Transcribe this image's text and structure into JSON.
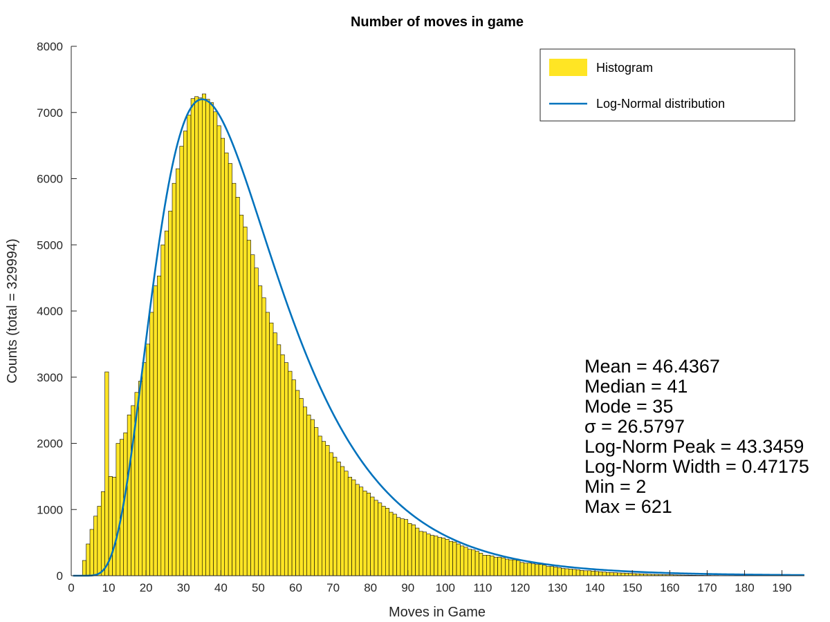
{
  "colors": {
    "bar_fill": "#FFE524",
    "bar_edge": "#000000",
    "line": "#0072BD",
    "axis": "#262626"
  },
  "legend": {
    "position": "top-right",
    "items": [
      {
        "label": "Histogram",
        "kind": "bar"
      },
      {
        "label": "Log-Normal distribution",
        "kind": "line"
      }
    ]
  },
  "stats": [
    "Mean = 46.4367",
    "Median = 41",
    "Mode = 35",
    "σ = 26.5797",
    "Log-Norm Peak = 43.3459",
    "Log-Norm Width = 0.47175",
    "Min = 2",
    "Max = 621"
  ],
  "chart_data": {
    "type": "bar",
    "title": "Number of moves in game",
    "xlabel": "Moves in Game",
    "ylabel": "Counts (total = 329994)",
    "xlim": [
      0,
      196
    ],
    "ylim": [
      0,
      8000
    ],
    "xticks": [
      0,
      10,
      20,
      30,
      40,
      50,
      60,
      70,
      80,
      90,
      100,
      110,
      120,
      130,
      140,
      150,
      160,
      170,
      180,
      190
    ],
    "yticks": [
      0,
      1000,
      2000,
      3000,
      4000,
      5000,
      6000,
      7000,
      8000
    ],
    "grid": false,
    "histogram": {
      "name": "Histogram",
      "bin_start": 2,
      "bin_width": 1,
      "values": [
        5,
        230,
        480,
        700,
        900,
        1050,
        1270,
        3080,
        1500,
        1490,
        2000,
        2060,
        2160,
        2430,
        2570,
        2770,
        2940,
        3220,
        3500,
        3980,
        4380,
        4530,
        5000,
        5210,
        5510,
        5930,
        6150,
        6490,
        6720,
        6960,
        7210,
        7240,
        7220,
        7280,
        7200,
        7150,
        7010,
        6800,
        6610,
        6390,
        6230,
        5930,
        5720,
        5450,
        5270,
        5070,
        4850,
        4650,
        4380,
        4200,
        3980,
        3820,
        3670,
        3490,
        3340,
        3220,
        3090,
        2960,
        2800,
        2680,
        2550,
        2430,
        2360,
        2240,
        2110,
        2030,
        1970,
        1860,
        1790,
        1720,
        1650,
        1580,
        1490,
        1450,
        1380,
        1340,
        1280,
        1250,
        1190,
        1140,
        1100,
        1050,
        1020,
        960,
        930,
        880,
        860,
        850,
        790,
        770,
        720,
        670,
        660,
        630,
        610,
        600,
        580,
        570,
        550,
        520,
        510,
        480,
        450,
        430,
        400,
        390,
        370,
        340,
        310,
        310,
        300,
        280,
        280,
        270,
        250,
        240,
        240,
        230,
        200,
        190,
        190,
        180,
        170,
        170,
        160,
        140,
        140,
        130,
        120,
        110,
        105,
        100,
        95,
        90,
        80,
        75,
        75,
        70,
        65,
        60,
        55,
        50,
        48,
        45,
        42,
        40,
        38,
        35,
        32,
        30,
        28,
        25,
        22,
        20,
        19,
        18,
        16,
        15,
        14,
        12,
        11,
        10,
        9,
        8,
        7,
        6,
        6,
        5,
        5,
        4,
        4,
        3,
        3,
        3,
        2,
        2,
        2,
        2,
        1,
        1,
        1,
        1,
        1,
        1,
        1,
        1,
        1,
        1,
        1,
        1,
        0,
        0
      ]
    },
    "fit": {
      "name": "Log-Normal distribution",
      "model": "lognormal",
      "peak_count": 7200,
      "mode": 35,
      "mu": 3.778,
      "sigma": 0.47175
    }
  }
}
